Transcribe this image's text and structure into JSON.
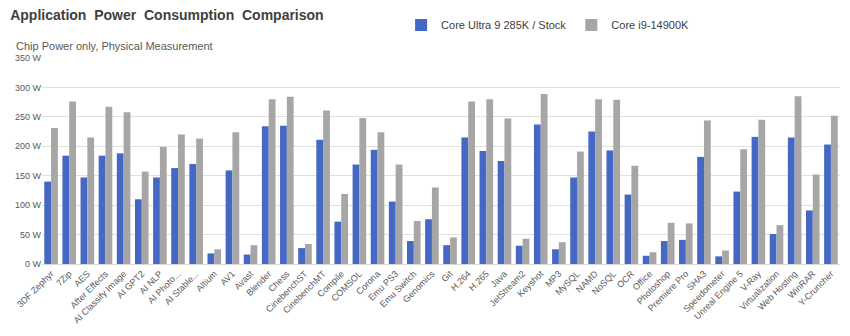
{
  "chart_data": {
    "type": "bar",
    "title": "Application  Power  Consumption  Comparison",
    "subtitle": "Chip Power only, Physical Measurement",
    "categories": [
      "3DF Zephyr",
      "7Zip",
      "AES",
      "After Effects",
      "AI Classify Image",
      "AI GPT2",
      "AI NLP",
      "AI Photo...",
      "AI Stable...",
      "Altium",
      "AV1",
      "Avast",
      "Blender",
      "Chess",
      "CinebenchST",
      "CinebenchMT",
      "Compile",
      "COMSOL",
      "Corona",
      "Emu PS3",
      "Emu Switch",
      "Genomics",
      "Git",
      "H.264",
      "H.265",
      "Java",
      "JetStream2",
      "Keyshot",
      "MP3",
      "MySQL",
      "NAMD",
      "NoSQL",
      "OCR",
      "Office",
      "Photoshop",
      "Premiere Pro",
      "SHA3",
      "Speedometer",
      "Unreal Engine 5",
      "V-Ray",
      "Virtualization",
      "Web Hosting",
      "WinRAR",
      "Y-Cruncher"
    ],
    "series": [
      {
        "name": "Core Ultra 9 285K / Stock",
        "color": "#4468c4",
        "values": [
          140,
          184,
          147,
          184,
          188,
          110,
          147,
          163,
          170,
          18,
          159,
          16,
          234,
          235,
          27,
          211,
          72,
          169,
          194,
          106,
          39,
          76,
          32,
          215,
          192,
          175,
          31,
          237,
          25,
          147,
          225,
          193,
          118,
          14,
          39,
          41,
          182,
          13,
          123,
          216,
          51,
          215,
          91,
          203
        ]
      },
      {
        "name": "Core i9-14900K",
        "color": "#a6a6a6",
        "values": [
          231,
          276,
          215,
          267,
          258,
          157,
          199,
          220,
          213,
          25,
          224,
          32,
          280,
          284,
          34,
          261,
          119,
          248,
          224,
          169,
          73,
          130,
          45,
          276,
          280,
          247,
          43,
          289,
          37,
          191,
          280,
          279,
          167,
          20,
          70,
          69,
          244,
          23,
          195,
          245,
          66,
          285,
          152,
          252
        ]
      }
    ],
    "ylim": [
      0,
      350
    ],
    "yticks": [
      {
        "value": 0,
        "label": "0 W"
      },
      {
        "value": 50,
        "label": "50 W"
      },
      {
        "value": 100,
        "label": "100 W"
      },
      {
        "value": 150,
        "label": "150 W"
      },
      {
        "value": 200,
        "label": "200 W"
      },
      {
        "value": 250,
        "label": "250 W"
      },
      {
        "value": 300,
        "label": "300 W"
      },
      {
        "value": 350,
        "label": "350 W"
      }
    ],
    "grid": true,
    "legend": "top"
  }
}
